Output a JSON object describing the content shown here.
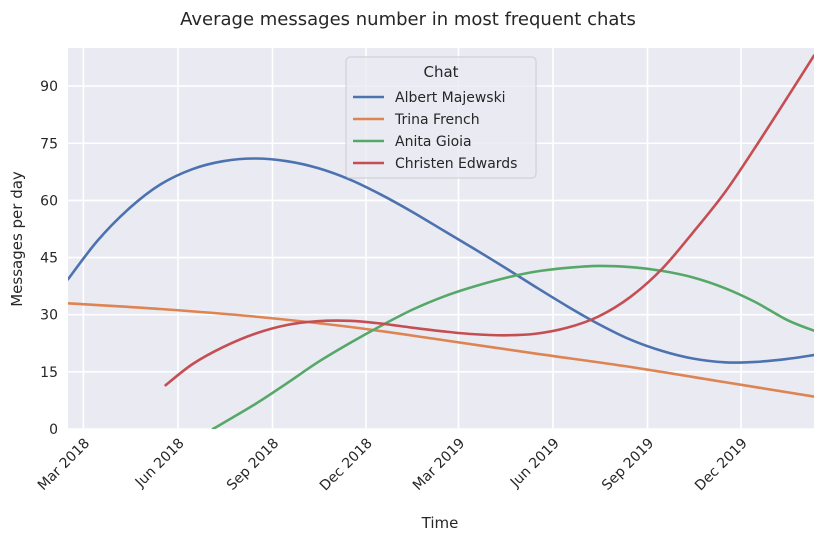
{
  "chart_data": {
    "type": "line",
    "title": "Average messages number in most frequent chats",
    "xlabel": "Time",
    "ylabel": "Messages per day",
    "x_ticks": [
      "Mar 2018",
      "Jun 2018",
      "Sep 2018",
      "Dec 2018",
      "Mar 2019",
      "Jun 2019",
      "Sep 2019",
      "Dec 2019"
    ],
    "y_ticks": [
      "0",
      "15",
      "30",
      "45",
      "60",
      "75",
      "90"
    ],
    "xlim": [
      "2018-02-14",
      "2020-02-10"
    ],
    "ylim": [
      0,
      100
    ],
    "grid": true,
    "legend": {
      "title": "Chat",
      "placement": "top-center"
    },
    "series": [
      {
        "name": "Albert Majewski",
        "color": "#4c72b0",
        "points": [
          [
            "2018-02-14",
            39.3
          ],
          [
            "2018-03-15",
            49.5
          ],
          [
            "2018-04-15",
            58.0
          ],
          [
            "2018-05-15",
            64.2
          ],
          [
            "2018-06-15",
            68.2
          ],
          [
            "2018-07-15",
            70.3
          ],
          [
            "2018-08-15",
            71.0
          ],
          [
            "2018-09-15",
            70.3
          ],
          [
            "2018-10-15",
            68.5
          ],
          [
            "2018-11-15",
            65.5
          ],
          [
            "2018-12-15",
            61.6
          ],
          [
            "2019-01-15",
            57.0
          ],
          [
            "2019-02-15",
            52.0
          ],
          [
            "2019-03-15",
            47.5
          ],
          [
            "2019-04-15",
            42.4
          ],
          [
            "2019-05-15",
            37.3
          ],
          [
            "2019-06-15",
            32.2
          ],
          [
            "2019-07-15",
            27.6
          ],
          [
            "2019-08-15",
            23.5
          ],
          [
            "2019-09-15",
            20.5
          ],
          [
            "2019-10-15",
            18.5
          ],
          [
            "2019-11-15",
            17.5
          ],
          [
            "2019-12-15",
            17.6
          ],
          [
            "2020-01-15",
            18.4
          ],
          [
            "2020-02-10",
            19.4
          ]
        ]
      },
      {
        "name": "Trina French",
        "color": "#dd8452",
        "points": [
          [
            "2018-02-14",
            33.0
          ],
          [
            "2018-05-15",
            31.5
          ],
          [
            "2018-08-15",
            29.5
          ],
          [
            "2018-11-15",
            26.8
          ],
          [
            "2019-02-15",
            23.3
          ],
          [
            "2019-05-15",
            19.8
          ],
          [
            "2019-08-15",
            16.3
          ],
          [
            "2019-11-15",
            12.3
          ],
          [
            "2020-02-10",
            8.5
          ]
        ]
      },
      {
        "name": "Anita Gioia",
        "color": "#55a868",
        "points": [
          [
            "2018-07-05",
            0
          ],
          [
            "2018-08-15",
            6.5
          ],
          [
            "2018-09-15",
            12.0
          ],
          [
            "2018-10-15",
            17.5
          ],
          [
            "2018-11-15",
            22.5
          ],
          [
            "2018-12-15",
            27.0
          ],
          [
            "2019-01-15",
            31.3
          ],
          [
            "2019-02-15",
            34.8
          ],
          [
            "2019-03-15",
            37.3
          ],
          [
            "2019-04-15",
            39.6
          ],
          [
            "2019-05-15",
            41.3
          ],
          [
            "2019-06-15",
            42.3
          ],
          [
            "2019-07-15",
            42.8
          ],
          [
            "2019-08-15",
            42.5
          ],
          [
            "2019-09-15",
            41.5
          ],
          [
            "2019-10-15",
            39.8
          ],
          [
            "2019-11-15",
            37.0
          ],
          [
            "2019-12-15",
            33.3
          ],
          [
            "2020-01-15",
            28.6
          ],
          [
            "2020-02-10",
            25.8
          ]
        ]
      },
      {
        "name": "Christen Edwards",
        "color": "#c44e52",
        "points": [
          [
            "2018-05-20",
            11.5
          ],
          [
            "2018-06-15",
            17.0
          ],
          [
            "2018-07-15",
            21.5
          ],
          [
            "2018-08-15",
            25.0
          ],
          [
            "2018-09-15",
            27.3
          ],
          [
            "2018-10-15",
            28.3
          ],
          [
            "2018-11-15",
            28.4
          ],
          [
            "2018-12-15",
            27.7
          ],
          [
            "2019-01-15",
            26.6
          ],
          [
            "2019-02-15",
            25.6
          ],
          [
            "2019-03-15",
            24.9
          ],
          [
            "2019-04-15",
            24.6
          ],
          [
            "2019-05-15",
            25.0
          ],
          [
            "2019-06-15",
            26.6
          ],
          [
            "2019-07-15",
            29.5
          ],
          [
            "2019-08-15",
            34.6
          ],
          [
            "2019-09-15",
            42.0
          ],
          [
            "2019-10-15",
            51.5
          ],
          [
            "2019-11-15",
            62.0
          ],
          [
            "2019-12-15",
            74.0
          ],
          [
            "2020-01-15",
            87.0
          ],
          [
            "2020-02-10",
            98.0
          ]
        ]
      }
    ]
  }
}
